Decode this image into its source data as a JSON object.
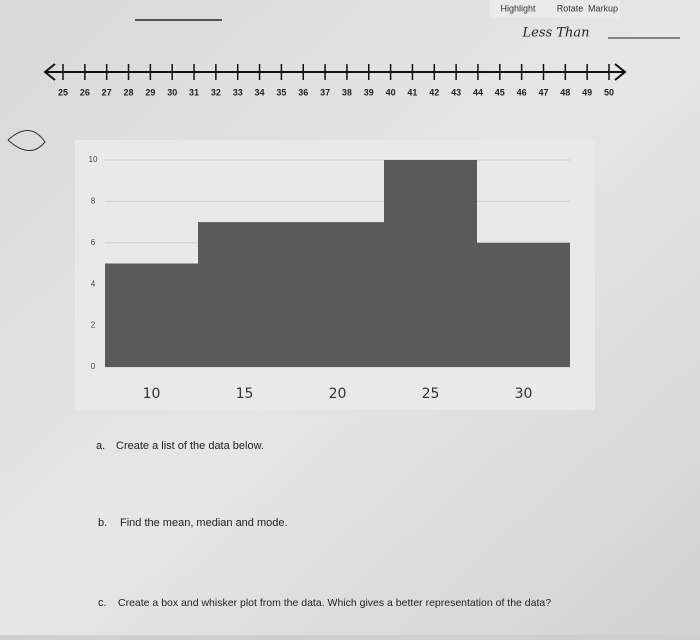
{
  "toolbar": {
    "buttons": [
      "Highlight",
      "Rotate",
      "Markup"
    ]
  },
  "handwriting": {
    "note": "Less Than"
  },
  "number_line": {
    "labels": [
      25,
      26,
      27,
      28,
      29,
      30,
      31,
      32,
      33,
      34,
      35,
      36,
      37,
      38,
      39,
      40,
      41,
      42,
      43,
      44,
      45,
      46,
      47,
      48,
      49,
      50
    ]
  },
  "chart_data": {
    "type": "bar",
    "categories": [
      "10",
      "15",
      "20",
      "25",
      "30"
    ],
    "values": [
      5,
      7,
      7,
      10,
      6
    ],
    "color": "#5a5a5a",
    "ylim": [
      0,
      10
    ],
    "yticks": [
      0,
      2,
      4,
      6,
      8,
      10
    ],
    "grid": true
  },
  "questions": [
    {
      "letter": "a.",
      "text": "Create a list of the data below."
    },
    {
      "letter": "b.",
      "text": "Find the mean, median and mode."
    },
    {
      "letter": "c.",
      "text": "Create a box and whisker plot from the data. Which gives a better representation of the data?"
    }
  ]
}
